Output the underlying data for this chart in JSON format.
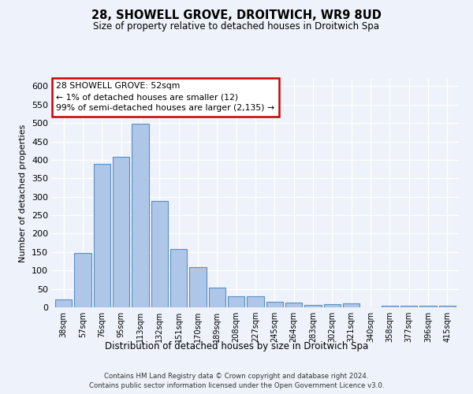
{
  "title": "28, SHOWELL GROVE, DROITWICH, WR9 8UD",
  "subtitle": "Size of property relative to detached houses in Droitwich Spa",
  "xlabel": "Distribution of detached houses by size in Droitwich Spa",
  "ylabel": "Number of detached properties",
  "categories": [
    "38sqm",
    "57sqm",
    "76sqm",
    "95sqm",
    "113sqm",
    "132sqm",
    "151sqm",
    "170sqm",
    "189sqm",
    "208sqm",
    "227sqm",
    "245sqm",
    "264sqm",
    "283sqm",
    "302sqm",
    "321sqm",
    "340sqm",
    "358sqm",
    "377sqm",
    "396sqm",
    "415sqm"
  ],
  "values": [
    22,
    148,
    390,
    408,
    498,
    288,
    158,
    108,
    53,
    30,
    30,
    15,
    12,
    7,
    9,
    10,
    0,
    4,
    4,
    5,
    4
  ],
  "bar_color": "#aec6e8",
  "bar_edge_color": "#5a8fc2",
  "background_color": "#eef2fa",
  "grid_color": "#ffffff",
  "annotation_text": "28 SHOWELL GROVE: 52sqm\n← 1% of detached houses are smaller (12)\n99% of semi-detached houses are larger (2,135) →",
  "annotation_box_color": "#ffffff",
  "annotation_box_edge_color": "#cc0000",
  "ylim": [
    0,
    620
  ],
  "yticks": [
    0,
    50,
    100,
    150,
    200,
    250,
    300,
    350,
    400,
    450,
    500,
    550,
    600
  ],
  "footer_line1": "Contains HM Land Registry data © Crown copyright and database right 2024.",
  "footer_line2": "Contains public sector information licensed under the Open Government Licence v3.0."
}
